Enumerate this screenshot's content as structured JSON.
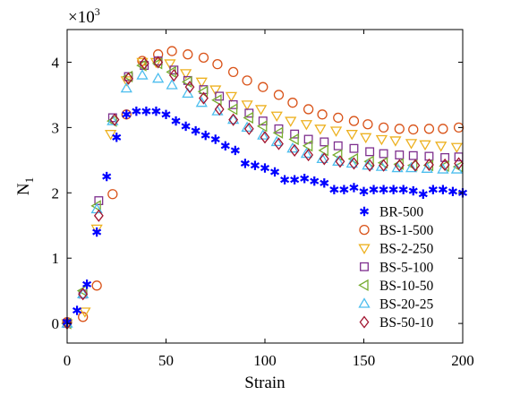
{
  "chart_data": {
    "type": "scatter",
    "title": "",
    "xlabel": "Strain",
    "ylabel": "N",
    "ylabel_subscript": "1",
    "y_multiplier": "×10",
    "y_multiplier_exp": "3",
    "xlim": [
      0,
      200
    ],
    "ylim": [
      -0.3,
      4.5
    ],
    "xticks": [
      0,
      50,
      100,
      150,
      200
    ],
    "yticks": [
      0,
      1,
      2,
      3,
      4
    ],
    "grid": false,
    "legend_position": "bottom-right",
    "series": [
      {
        "name": "BR-500",
        "marker": "asterisk",
        "color": "#0000ff",
        "x": [
          0,
          5,
          10,
          15,
          20,
          25,
          30,
          35,
          40,
          45,
          50,
          55,
          60,
          65,
          70,
          75,
          80,
          85,
          90,
          95,
          100,
          105,
          110,
          115,
          120,
          125,
          130,
          135,
          140,
          145,
          150,
          155,
          160,
          165,
          170,
          175,
          180,
          185,
          190,
          195,
          200
        ],
        "y": [
          0.02,
          0.2,
          0.6,
          1.4,
          2.25,
          2.85,
          3.2,
          3.25,
          3.25,
          3.25,
          3.2,
          3.1,
          3.02,
          2.95,
          2.88,
          2.82,
          2.72,
          2.65,
          2.45,
          2.42,
          2.38,
          2.32,
          2.2,
          2.2,
          2.22,
          2.18,
          2.15,
          2.05,
          2.05,
          2.08,
          2.02,
          2.05,
          2.05,
          2.05,
          2.05,
          2.03,
          1.98,
          2.05,
          2.05,
          2.02,
          2.0
        ]
      },
      {
        "name": "BS-1-500",
        "marker": "circle",
        "color": "#d95319",
        "x": [
          0,
          8,
          15,
          23,
          30,
          38,
          46,
          53,
          61,
          69,
          76,
          84,
          91,
          99,
          107,
          114,
          122,
          129,
          137,
          145,
          152,
          160,
          168,
          175,
          183,
          190,
          198
        ],
        "y": [
          0.02,
          0.1,
          0.58,
          1.98,
          3.2,
          4.02,
          4.12,
          4.17,
          4.12,
          4.07,
          3.97,
          3.85,
          3.72,
          3.62,
          3.5,
          3.38,
          3.28,
          3.2,
          3.15,
          3.1,
          3.05,
          3.0,
          2.98,
          2.97,
          2.98,
          2.98,
          3.0
        ]
      },
      {
        "name": "BS-2-250",
        "marker": "triangle-down",
        "color": "#edb120",
        "x": [
          0,
          9,
          15,
          22,
          30,
          38,
          45,
          52,
          60,
          68,
          75,
          83,
          91,
          98,
          106,
          113,
          121,
          128,
          136,
          144,
          151,
          159,
          166,
          174,
          181,
          189,
          197
        ],
        "y": [
          0.0,
          0.18,
          1.45,
          2.9,
          3.72,
          4.0,
          4.0,
          3.98,
          3.83,
          3.7,
          3.58,
          3.48,
          3.35,
          3.28,
          3.18,
          3.1,
          3.05,
          2.98,
          2.95,
          2.9,
          2.85,
          2.82,
          2.8,
          2.76,
          2.74,
          2.72,
          2.7
        ]
      },
      {
        "name": "BS-5-100",
        "marker": "square",
        "color": "#7e2f8e",
        "x": [
          0,
          8,
          16,
          23,
          31,
          39,
          46,
          54,
          61,
          69,
          77,
          84,
          92,
          99,
          107,
          115,
          122,
          130,
          137,
          145,
          153,
          160,
          168,
          175,
          183,
          191,
          198
        ],
        "y": [
          0.0,
          0.45,
          1.88,
          3.15,
          3.78,
          3.95,
          4.02,
          3.88,
          3.72,
          3.58,
          3.48,
          3.35,
          3.22,
          3.1,
          2.98,
          2.9,
          2.82,
          2.78,
          2.72,
          2.68,
          2.63,
          2.6,
          2.58,
          2.57,
          2.56,
          2.54,
          2.55
        ]
      },
      {
        "name": "BS-10-50",
        "marker": "triangle-left",
        "color": "#77ac30",
        "x": [
          0,
          8,
          15,
          23,
          31,
          38,
          46,
          53,
          61,
          69,
          76,
          84,
          92,
          99,
          107,
          115,
          122,
          130,
          137,
          145,
          153,
          160,
          168,
          175,
          183,
          191,
          198
        ],
        "y": [
          0.0,
          0.5,
          1.8,
          3.1,
          3.78,
          3.95,
          3.98,
          3.85,
          3.7,
          3.55,
          3.42,
          3.28,
          3.15,
          3.02,
          2.92,
          2.82,
          2.72,
          2.65,
          2.58,
          2.52,
          2.48,
          2.46,
          2.44,
          2.42,
          2.42,
          2.41,
          2.4
        ]
      },
      {
        "name": "BS-20-25",
        "marker": "triangle-up",
        "color": "#4dbeee",
        "x": [
          0,
          8,
          15,
          23,
          30,
          38,
          46,
          53,
          61,
          68,
          76,
          84,
          91,
          99,
          106,
          114,
          121,
          129,
          137,
          144,
          152,
          159,
          167,
          174,
          182,
          190,
          197
        ],
        "y": [
          0.0,
          0.45,
          1.75,
          3.1,
          3.6,
          3.8,
          3.75,
          3.65,
          3.52,
          3.38,
          3.25,
          3.12,
          3.0,
          2.88,
          2.78,
          2.68,
          2.6,
          2.52,
          2.48,
          2.45,
          2.42,
          2.4,
          2.38,
          2.38,
          2.37,
          2.36,
          2.36
        ]
      },
      {
        "name": "BS-50-10",
        "marker": "diamond",
        "color": "#a2142f",
        "x": [
          0,
          8,
          16,
          24,
          31,
          39,
          46,
          54,
          62,
          69,
          77,
          84,
          92,
          100,
          107,
          115,
          122,
          130,
          138,
          145,
          153,
          160,
          168,
          176,
          183,
          191,
          198
        ],
        "y": [
          0.0,
          0.45,
          1.65,
          3.12,
          3.75,
          3.98,
          4.0,
          3.8,
          3.62,
          3.45,
          3.28,
          3.12,
          2.98,
          2.85,
          2.75,
          2.65,
          2.58,
          2.52,
          2.48,
          2.45,
          2.42,
          2.42,
          2.42,
          2.42,
          2.43,
          2.43,
          2.45
        ]
      }
    ]
  }
}
